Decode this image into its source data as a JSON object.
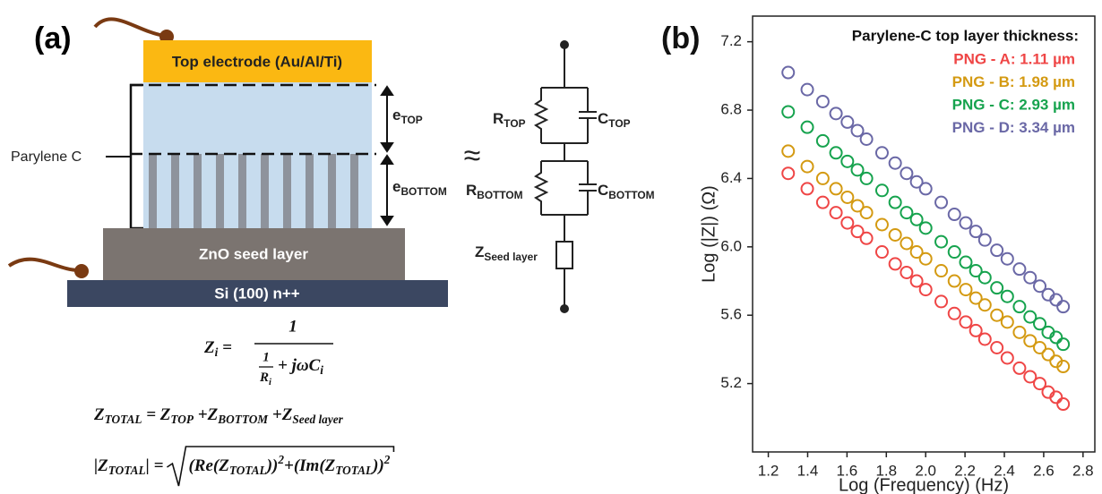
{
  "panel_a": {
    "label": "(a)",
    "top_electrode": "Top electrode (Au/Al/Ti)",
    "parylene": "Parylene C",
    "seed": "ZnO seed layer",
    "substrate": "Si (100) n++",
    "e_top": [
      {
        "b": "e",
        "s": "TOP"
      }
    ],
    "e_bottom": [
      {
        "b": "e",
        "s": "BOTTOM"
      }
    ],
    "approx": "≈",
    "r_top": [
      {
        "b": "R",
        "s": "TOP"
      }
    ],
    "c_top": [
      {
        "b": "C",
        "s": "TOP"
      }
    ],
    "r_bottom": [
      {
        "b": "R",
        "s": "BOTTOM"
      }
    ],
    "c_bottom": [
      {
        "b": "C",
        "s": "BOTTOM"
      }
    ],
    "z_seed": [
      {
        "b": "Z",
        "s": "Seed layer"
      }
    ],
    "eq1": {
      "lhs": [
        {
          "b": "Z",
          "s": "i"
        },
        {
          "b": " = "
        }
      ],
      "num": "1",
      "den_num": "1",
      "den_den": [
        {
          "b": "R",
          "s": "i"
        }
      ],
      "den_rest": [
        {
          "b": "+ jωC",
          "s": "i"
        }
      ]
    },
    "eq2": [
      {
        "b": "Z",
        "s": "TOTAL"
      },
      {
        "b": " = Z",
        "s": "TOP"
      },
      {
        "b": " +Z",
        "s": "BOTTOM"
      },
      {
        "b": " +Z",
        "s": "Seed layer"
      }
    ],
    "eq3": {
      "lhs": [
        {
          "b": "|Z",
          "s": "TOTAL"
        },
        {
          "b": "| = "
        }
      ],
      "radicand": [
        {
          "b": "(Re(Z",
          "s": "TOTAL"
        },
        {
          "b": "))",
          "p": "2"
        },
        {
          "b": "+(Im(Z",
          "s": "TOTAL"
        },
        {
          "b": "))",
          "p": "2"
        }
      ]
    }
  },
  "chart_data": {
    "type": "scatter",
    "panel_label": "(b)",
    "legend_title": "Parylene-C top layer thickness:",
    "legend": "upper right",
    "x_label": "Log (Frequency) (Hz)",
    "y_label": "Log (|Z|) (Ω)",
    "xlim": [
      1.12,
      2.86
    ],
    "ylim": [
      4.8,
      7.35
    ],
    "xticks": [
      1.2,
      1.4,
      1.6,
      1.8,
      {
        "value": 2,
        "label": "2.0"
      },
      2.2,
      2.4,
      2.6,
      2.8
    ],
    "yticks": [
      5.2,
      5.6,
      {
        "value": 6,
        "label": "6.0"
      },
      6.4,
      6.8,
      7.2
    ],
    "x": [
      1.301,
      1.398,
      1.477,
      1.544,
      1.602,
      1.653,
      1.699,
      1.778,
      1.845,
      1.903,
      1.954,
      2.0,
      2.079,
      2.146,
      2.204,
      2.255,
      2.301,
      2.362,
      2.415,
      2.477,
      2.531,
      2.58,
      2.623,
      2.663,
      2.699
    ],
    "series": [
      {
        "name": "PNG - A: 1.11 µm",
        "color": "#ef4646",
        "values": [
          6.43,
          6.34,
          6.26,
          6.2,
          6.14,
          6.09,
          6.05,
          5.97,
          5.9,
          5.85,
          5.8,
          5.75,
          5.68,
          5.61,
          5.56,
          5.51,
          5.46,
          5.41,
          5.35,
          5.29,
          5.24,
          5.2,
          5.15,
          5.12,
          5.08
        ]
      },
      {
        "name": "PNG - B: 1.98 µm",
        "color": "#d49a12",
        "values": [
          6.56,
          6.47,
          6.4,
          6.34,
          6.29,
          6.24,
          6.2,
          6.13,
          6.07,
          6.02,
          5.97,
          5.93,
          5.86,
          5.8,
          5.75,
          5.7,
          5.66,
          5.6,
          5.56,
          5.5,
          5.45,
          5.41,
          5.37,
          5.33,
          5.3
        ]
      },
      {
        "name": "PNG - C: 2.93 µm",
        "color": "#16a34e",
        "values": [
          6.79,
          6.7,
          6.62,
          6.55,
          6.5,
          6.45,
          6.4,
          6.33,
          6.26,
          6.2,
          6.16,
          6.11,
          6.03,
          5.97,
          5.91,
          5.86,
          5.82,
          5.76,
          5.71,
          5.65,
          5.59,
          5.55,
          5.5,
          5.47,
          5.43
        ]
      },
      {
        "name": "PNG - D: 3.34 µm",
        "color": "#6a68a6",
        "values": [
          7.02,
          6.92,
          6.85,
          6.78,
          6.73,
          6.68,
          6.63,
          6.55,
          6.49,
          6.43,
          6.38,
          6.34,
          6.26,
          6.19,
          6.14,
          6.09,
          6.04,
          5.98,
          5.93,
          5.87,
          5.82,
          5.77,
          5.72,
          5.69,
          5.65
        ]
      }
    ]
  }
}
